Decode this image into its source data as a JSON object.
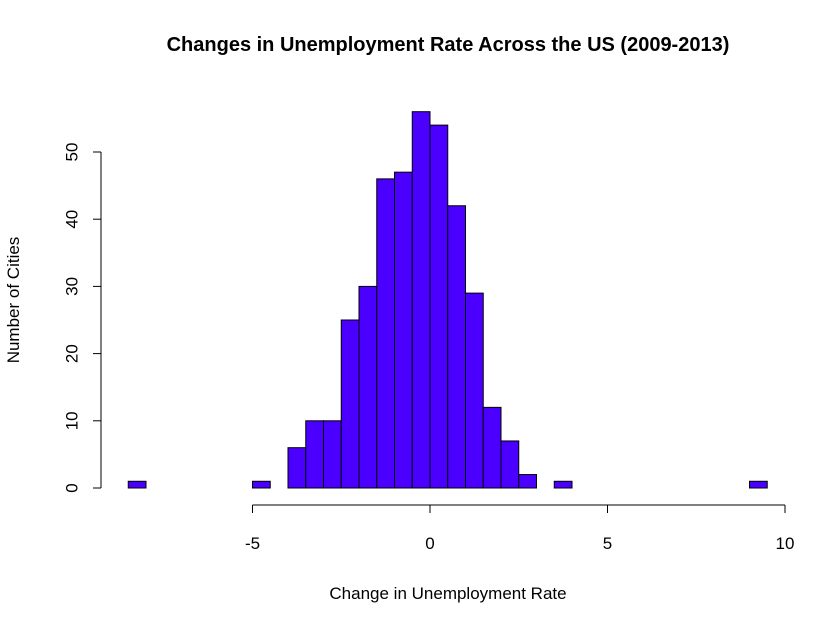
{
  "chart_data": {
    "type": "histogram",
    "title": "Changes in Unemployment Rate Across the US (2009-2013)",
    "xlabel": "Change in Unemployment Rate",
    "ylabel": "Number of Cities",
    "bin_width": 0.5,
    "bins": [
      {
        "x0": -8.5,
        "x1": -8.0,
        "count": 1
      },
      {
        "x0": -5.0,
        "x1": -4.5,
        "count": 1
      },
      {
        "x0": -4.0,
        "x1": -3.5,
        "count": 6
      },
      {
        "x0": -3.5,
        "x1": -3.0,
        "count": 10
      },
      {
        "x0": -3.0,
        "x1": -2.5,
        "count": 10
      },
      {
        "x0": -2.5,
        "x1": -2.0,
        "count": 25
      },
      {
        "x0": -2.0,
        "x1": -1.5,
        "count": 30
      },
      {
        "x0": -1.5,
        "x1": -1.0,
        "count": 46
      },
      {
        "x0": -1.0,
        "x1": -0.5,
        "count": 47
      },
      {
        "x0": -0.5,
        "x1": 0.0,
        "count": 56
      },
      {
        "x0": 0.0,
        "x1": 0.5,
        "count": 54
      },
      {
        "x0": 0.5,
        "x1": 1.0,
        "count": 42
      },
      {
        "x0": 1.0,
        "x1": 1.5,
        "count": 29
      },
      {
        "x0": 1.5,
        "x1": 2.0,
        "count": 12
      },
      {
        "x0": 2.0,
        "x1": 2.5,
        "count": 7
      },
      {
        "x0": 2.5,
        "x1": 3.0,
        "count": 2
      },
      {
        "x0": 3.5,
        "x1": 4.0,
        "count": 1
      },
      {
        "x0": 9.0,
        "x1": 9.5,
        "count": 1
      }
    ],
    "xlim": [
      -8.5,
      9.5
    ],
    "ylim": [
      0,
      56
    ],
    "xticks": [
      -5,
      0,
      5,
      10
    ],
    "xtick_labels": [
      "-5",
      "0",
      "5",
      "10"
    ],
    "yticks": [
      0,
      10,
      20,
      30,
      40,
      50
    ],
    "ytick_labels": [
      "0",
      "10",
      "20",
      "30",
      "40",
      "50"
    ],
    "bar_color": "#4b00ff",
    "bar_edge_color": "#000000",
    "grid": false,
    "legend": "none"
  }
}
